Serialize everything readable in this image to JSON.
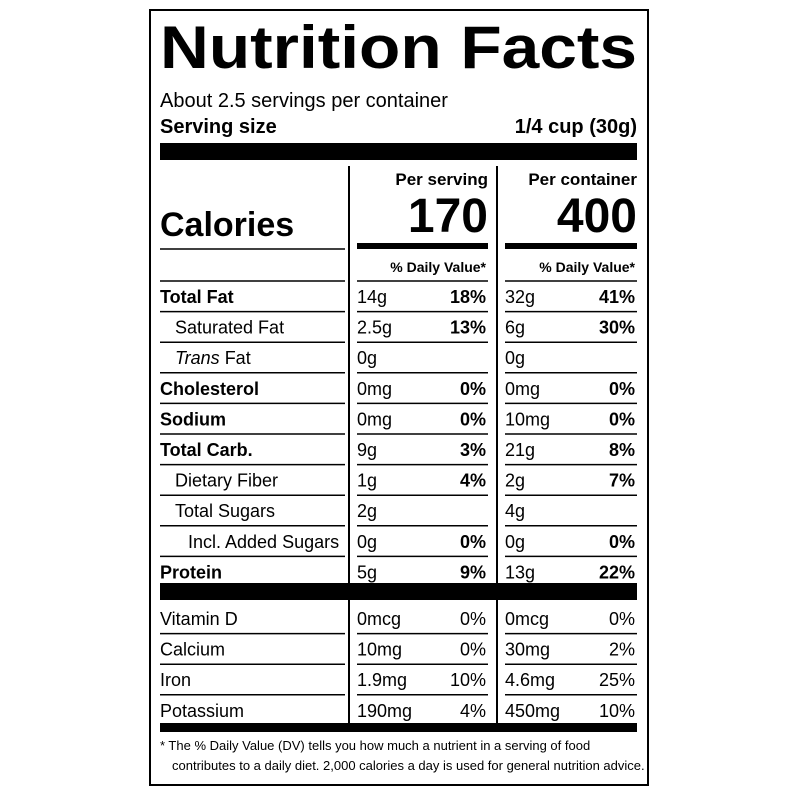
{
  "title": "Nutrition Facts",
  "servings_per_container": "About 2.5 servings per container",
  "serving_size": {
    "label": "Serving size",
    "value": "1/4 cup (30g)"
  },
  "calories_label": "Calories",
  "columns": [
    {
      "header": "Per serving",
      "calories": 170,
      "dv_header": "% Daily Value*"
    },
    {
      "header": "Per container",
      "calories": 400,
      "dv_header": "% Daily Value*"
    }
  ],
  "nutrients": [
    {
      "name": "Total Fat",
      "bold": true,
      "level": 0,
      "values": [
        [
          "14g",
          "18%"
        ],
        [
          "32g",
          "41%"
        ]
      ]
    },
    {
      "name": "Saturated Fat",
      "bold": false,
      "level": 1,
      "values": [
        [
          "2.5g",
          "13%"
        ],
        [
          "6g",
          "30%"
        ]
      ]
    },
    {
      "italic_prefix": "Trans",
      "name": "Fat",
      "bold": false,
      "level": 1,
      "values": [
        [
          "0g",
          null
        ],
        [
          "0g",
          null
        ]
      ]
    },
    {
      "name": "Cholesterol",
      "bold": true,
      "level": 0,
      "values": [
        [
          "0mg",
          "0%"
        ],
        [
          "0mg",
          "0%"
        ]
      ]
    },
    {
      "name": "Sodium",
      "bold": true,
      "level": 0,
      "values": [
        [
          "0mg",
          "0%"
        ],
        [
          "10mg",
          "0%"
        ]
      ]
    },
    {
      "name": "Total Carb.",
      "bold": true,
      "level": 0,
      "values": [
        [
          "9g",
          "3%"
        ],
        [
          "21g",
          "8%"
        ]
      ]
    },
    {
      "name": "Dietary Fiber",
      "bold": false,
      "level": 1,
      "values": [
        [
          "1g",
          "4%"
        ],
        [
          "2g",
          "7%"
        ]
      ]
    },
    {
      "name": "Total Sugars",
      "bold": false,
      "level": 1,
      "values": [
        [
          "2g",
          null
        ],
        [
          "4g",
          null
        ]
      ]
    },
    {
      "name": "Incl. Added Sugars",
      "bold": false,
      "level": 2,
      "values": [
        [
          "0g",
          "0%"
        ],
        [
          "0g",
          "0%"
        ]
      ]
    },
    {
      "name": "Protein",
      "bold": true,
      "level": 0,
      "values": [
        [
          "5g",
          "9%"
        ],
        [
          "13g",
          "22%"
        ]
      ]
    }
  ],
  "vitamins": [
    {
      "name": "Vitamin D",
      "values": [
        [
          "0mcg",
          "0%"
        ],
        [
          "0mcg",
          "0%"
        ]
      ]
    },
    {
      "name": "Calcium",
      "values": [
        [
          "10mg",
          "0%"
        ],
        [
          "30mg",
          "2%"
        ]
      ]
    },
    {
      "name": "Iron",
      "values": [
        [
          "1.9mg",
          "10%"
        ],
        [
          "4.6mg",
          "25%"
        ]
      ]
    },
    {
      "name": "Potassium",
      "values": [
        [
          "190mg",
          "4%"
        ],
        [
          "450mg",
          "10%"
        ]
      ]
    }
  ],
  "footnote": [
    "* The % Daily Value (DV) tells you how much a nutrient in a serving of food",
    "contributes to a daily diet. 2,000 calories a day is used for general nutrition advice."
  ]
}
